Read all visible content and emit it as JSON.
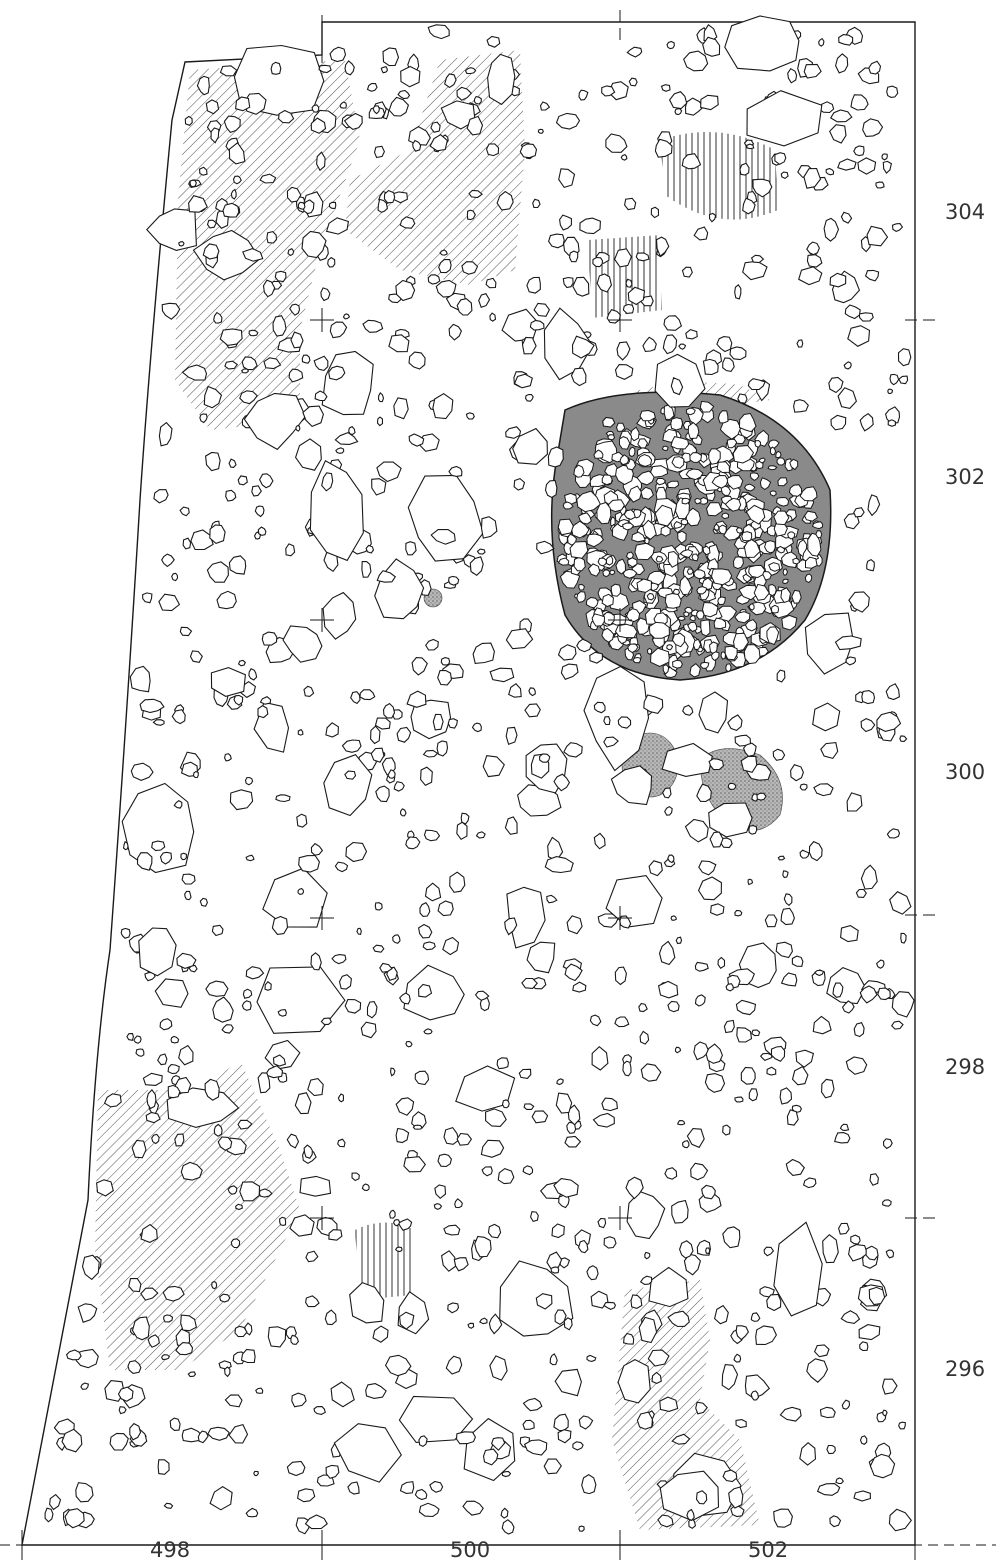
{
  "map": {
    "style": "archaeological excavation plan, line drawing of stones with hatched areas",
    "ink_color": "#1a1a1a",
    "hatch_color": "#333333",
    "fill_gray": "#9a9a9a",
    "grid_x_labels": [
      "498",
      "500",
      "502"
    ],
    "grid_y_labels": [
      "304",
      "302",
      "300",
      "298",
      "296"
    ]
  }
}
